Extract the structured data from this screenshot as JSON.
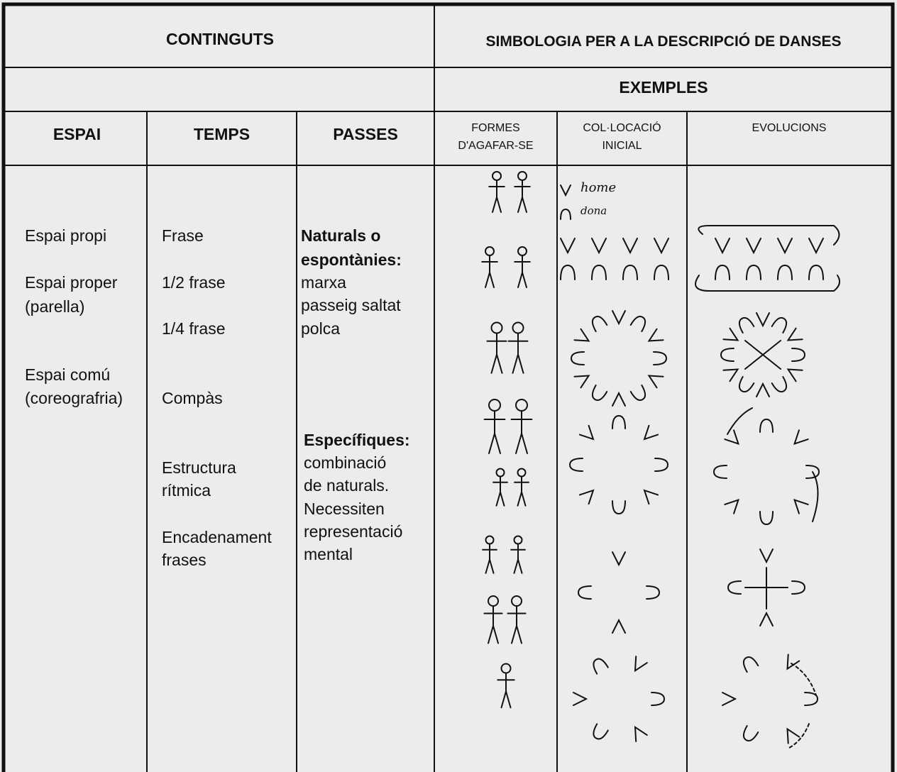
{
  "header": {
    "contents": "CONTINGUTS",
    "symbology": "SIMBOLOGIA PER A LA DESCRIPCIÓ DE DANSES",
    "examples": "EXEMPLES"
  },
  "columns": {
    "espai": "ESPAI",
    "temps": "TEMPS",
    "passes": "PASSES",
    "formes": [
      "FORMES",
      "D'AGAFAR-SE"
    ],
    "collocacio": [
      "COL·LOCACIÓ",
      "INICIAL"
    ],
    "evolucions": "EVOLUCIONS"
  },
  "espai": [
    "Espai propi",
    "Espai proper",
    "(parella)",
    "Espai comú",
    "(coreografria)"
  ],
  "temps": [
    "Frase",
    "1/2 frase",
    "1/4 frase",
    "Compàs",
    "Estructura",
    "rítmica",
    "Encadenament",
    "frases"
  ],
  "passes": [
    "Naturals o",
    "espontànies:",
    "marxa",
    "passeig saltat",
    "polca",
    "Específiques:",
    "combinació",
    "de naturals.",
    "Necessiten",
    "representació",
    "mental"
  ],
  "legend": [
    "home",
    "dona"
  ]
}
